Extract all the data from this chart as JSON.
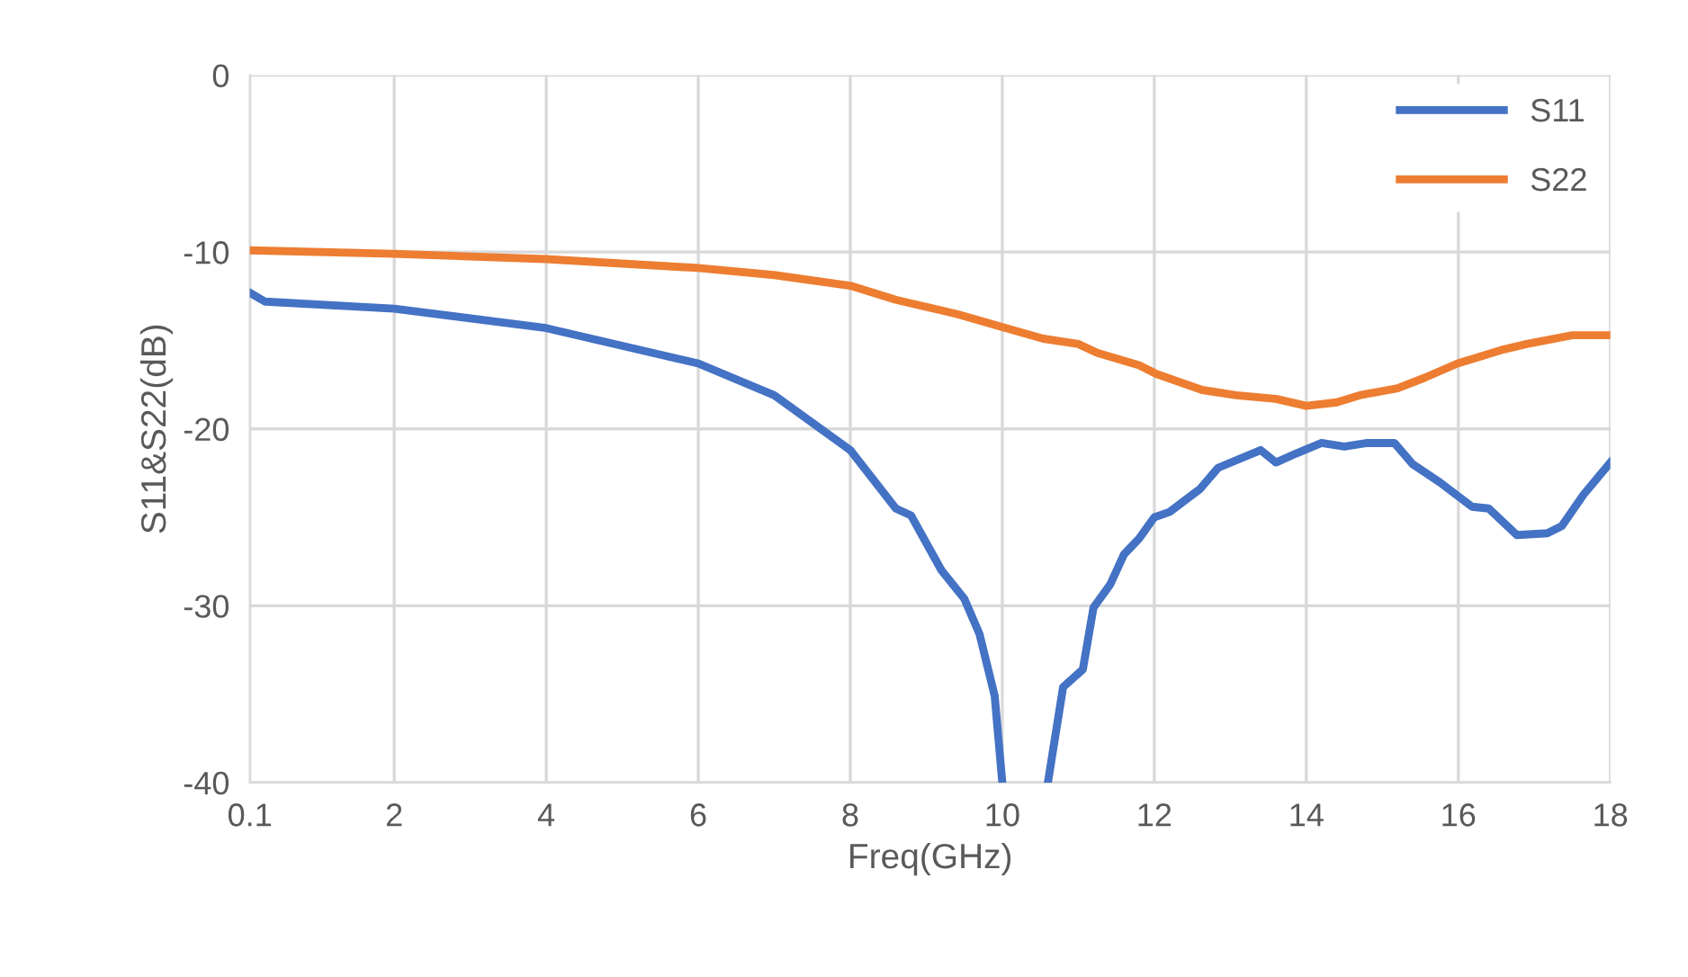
{
  "chart_data": {
    "type": "line",
    "xlabel": "Freq(GHz)",
    "ylabel": "S11&S22(dB)",
    "xlim": [
      0.1,
      18
    ],
    "xticks": [
      0.1,
      2,
      4,
      6,
      8,
      10,
      12,
      14,
      16,
      18
    ],
    "ylim": [
      -40,
      0
    ],
    "yticks": [
      0,
      -10,
      -20,
      -30,
      -40
    ],
    "grid": true,
    "legend": "top right",
    "marker": "none",
    "line_style": "solid",
    "series": [
      {
        "name": "S11",
        "color": "#4472c4",
        "x": [
          0.1,
          0.3,
          2,
          4,
          6,
          7,
          8,
          8.6,
          8.8,
          9.2,
          9.5,
          9.7,
          9.9,
          10.0,
          10.3,
          10.6,
          10.8,
          11.06,
          11.2,
          11.42,
          11.6,
          11.8,
          12.0,
          12.2,
          12.6,
          12.84,
          13.4,
          13.6,
          13.86,
          14.2,
          14.5,
          14.8,
          15.16,
          15.4,
          15.75,
          16.18,
          16.4,
          16.77,
          17.17,
          17.36,
          17.65,
          18
        ],
        "values": [
          -12.3,
          -12.8,
          -13.2,
          -14.3,
          -16.3,
          -18.1,
          -21.2,
          -24.5,
          -24.9,
          -28.0,
          -29.6,
          -31.6,
          -35.1,
          -40,
          null,
          -40,
          -34.6,
          -33.6,
          -30.1,
          -28.8,
          -27.1,
          -26.2,
          -25.0,
          -24.7,
          -23.4,
          -22.2,
          -21.2,
          -21.9,
          -21.4,
          -20.8,
          -21.0,
          -20.8,
          -20.8,
          -22.0,
          -23.0,
          -24.4,
          -24.5,
          -26.0,
          -25.9,
          -25.5,
          -23.7,
          -21.9
        ]
      },
      {
        "name": "S22",
        "color": "#ed7d31",
        "x": [
          0.1,
          2,
          4,
          6,
          7,
          8,
          8.6,
          9.4,
          10.05,
          10.54,
          11.0,
          11.25,
          11.8,
          12.03,
          12.63,
          13.08,
          13.6,
          14.0,
          14.4,
          14.7,
          15.2,
          15.56,
          15.99,
          16.6,
          16.9,
          17.5,
          18
        ],
        "values": [
          -9.9,
          -10.1,
          -10.4,
          -10.9,
          -11.3,
          -11.9,
          -12.7,
          -13.5,
          -14.3,
          -14.9,
          -15.2,
          -15.7,
          -16.4,
          -16.9,
          -17.8,
          -18.1,
          -18.3,
          -18.7,
          -18.5,
          -18.1,
          -17.7,
          -17.1,
          -16.3,
          -15.5,
          -15.2,
          -14.7,
          -14.7
        ]
      }
    ]
  }
}
